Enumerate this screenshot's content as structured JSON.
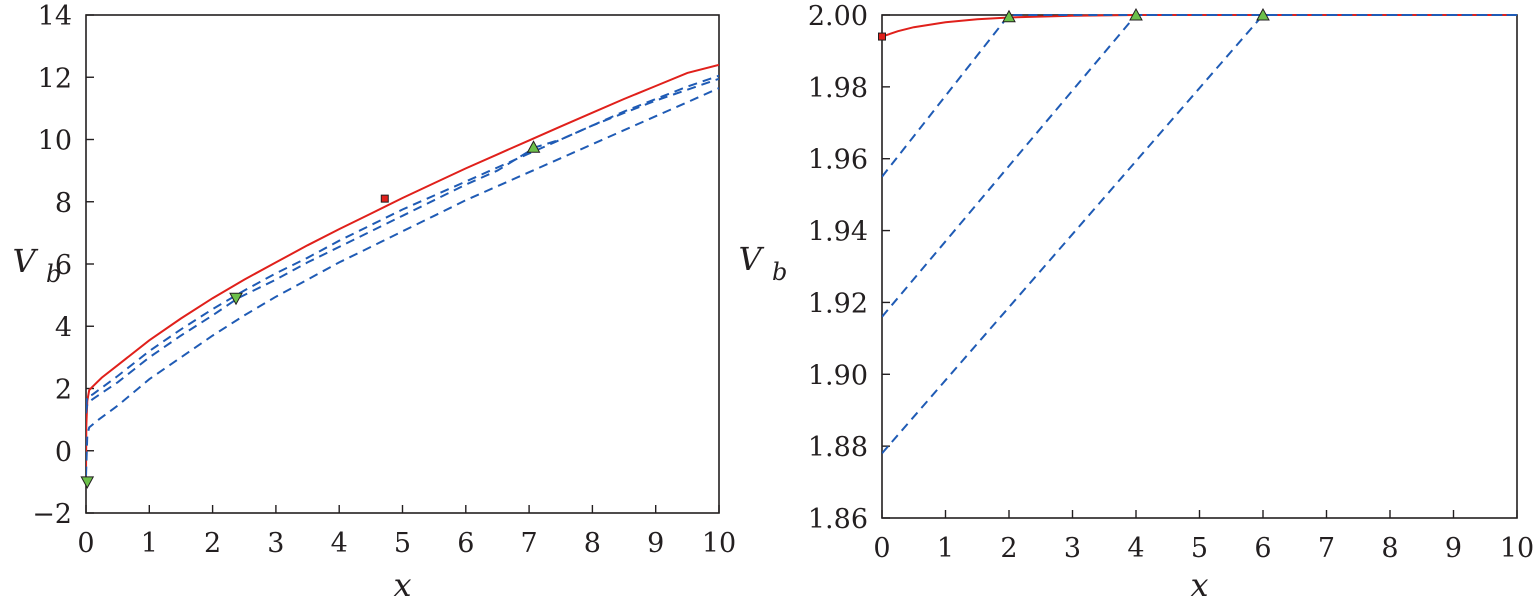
{
  "chart_data": [
    {
      "type": "line",
      "title": "",
      "xlabel": "x",
      "ylabel": "V",
      "ylabel_subscript": "b",
      "xlim": [
        0,
        10
      ],
      "ylim": [
        -2,
        14
      ],
      "xticks": [
        "0",
        "1",
        "2",
        "3",
        "4",
        "5",
        "6",
        "7",
        "8",
        "9",
        "10"
      ],
      "yticks": [
        "−2",
        "0",
        "2",
        "4",
        "6",
        "8",
        "10",
        "12",
        "14"
      ],
      "grid": false,
      "colors": {
        "solid": "#e0201b",
        "dashed": "#1f5bb5",
        "triangle_fill": "#6cc04a",
        "square_fill": "#e0201b",
        "axis": "#231f20"
      },
      "series": [
        {
          "style": "solid",
          "color": "#e0201b",
          "x": [
            0,
            0.005,
            0.02,
            0.05,
            0.1,
            0.25,
            0.5,
            1,
            1.5,
            2,
            2.5,
            3,
            3.5,
            4,
            4.5,
            5,
            5.5,
            6,
            6.5,
            7,
            7.5,
            8,
            8.5,
            9,
            9.5,
            10
          ],
          "y": [
            -0.8,
            0.8,
            1.6,
            1.95,
            2.05,
            2.35,
            2.75,
            3.55,
            4.25,
            4.9,
            5.5,
            6.05,
            6.6,
            7.12,
            7.62,
            8.12,
            8.6,
            9.07,
            9.52,
            9.97,
            10.42,
            10.86,
            11.3,
            11.72,
            12.14,
            12.4
          ]
        },
        {
          "style": "dashed",
          "color": "#1f5bb5",
          "x": [
            0,
            0.02,
            0.1,
            0.5,
            1,
            1.5,
            2,
            2.5,
            3,
            3.5,
            4,
            4.5,
            5,
            5.5,
            6,
            6.5,
            7,
            7.5,
            8,
            8.5,
            9,
            9.5,
            10
          ],
          "y": [
            1.4,
            1.75,
            1.8,
            2.4,
            3.2,
            3.9,
            4.55,
            5.15,
            5.7,
            6.2,
            6.75,
            7.25,
            7.75,
            8.2,
            8.65,
            9.1,
            9.55,
            10.0,
            10.45,
            10.9,
            11.3,
            11.7,
            12.05
          ]
        },
        {
          "style": "dashed",
          "color": "#1f5bb5",
          "x": [
            0,
            0.02,
            0.1,
            0.5,
            1,
            1.5,
            2,
            2.4,
            3,
            3.5,
            4,
            4.5,
            5,
            5.5,
            6,
            6.5,
            7.1,
            7.5,
            8,
            8.5,
            9,
            9.5,
            10
          ],
          "y": [
            1.2,
            1.5,
            1.65,
            2.2,
            3.0,
            3.7,
            4.35,
            4.9,
            5.5,
            6.05,
            6.55,
            7.05,
            7.55,
            8.05,
            8.55,
            9.0,
            9.75,
            10.0,
            10.45,
            10.85,
            11.25,
            11.6,
            11.95
          ]
        },
        {
          "style": "dashed",
          "color": "#1f5bb5",
          "x": [
            0,
            0.02,
            0.05,
            0.2,
            0.5,
            1,
            1.5,
            2,
            2.5,
            3,
            3.5,
            4,
            4.5,
            5,
            5.5,
            6,
            6.5,
            7,
            7.5,
            8,
            8.5,
            9,
            9.5,
            10
          ],
          "y": [
            -0.8,
            0.5,
            0.75,
            1.0,
            1.45,
            2.3,
            3.0,
            3.7,
            4.35,
            4.95,
            5.5,
            6.05,
            6.55,
            7.05,
            7.55,
            8.05,
            8.5,
            8.95,
            9.4,
            9.85,
            10.3,
            10.75,
            11.2,
            11.65
          ]
        }
      ],
      "markers": [
        {
          "shape": "square",
          "x": 4.72,
          "y": 8.1
        },
        {
          "shape": "triangle-down",
          "x": 0.02,
          "y": -1.0
        },
        {
          "shape": "triangle-down",
          "x": 2.37,
          "y": 4.9
        },
        {
          "shape": "triangle-up",
          "x": 7.07,
          "y": 9.75
        }
      ]
    },
    {
      "type": "line",
      "title": "",
      "xlabel": "x",
      "ylabel": "V",
      "ylabel_subscript": "b",
      "xlim": [
        0,
        10
      ],
      "ylim": [
        1.86,
        2.0
      ],
      "xticks": [
        "0",
        "1",
        "2",
        "3",
        "4",
        "5",
        "6",
        "7",
        "8",
        "9",
        "10"
      ],
      "yticks": [
        "1.86",
        "1.88",
        "1.90",
        "1.92",
        "1.94",
        "1.96",
        "1.98",
        "2.00"
      ],
      "grid": false,
      "colors": {
        "solid": "#e0201b",
        "dashed": "#1f5bb5",
        "triangle_fill": "#6cc04a",
        "square_fill": "#e0201b",
        "axis": "#231f20"
      },
      "series": [
        {
          "style": "solid",
          "color": "#e0201b",
          "x": [
            0,
            0.25,
            0.5,
            1,
            1.5,
            2,
            3,
            4,
            6,
            8,
            10
          ],
          "y": [
            1.994,
            1.9955,
            1.9966,
            1.998,
            1.9988,
            1.9993,
            1.9998,
            2.0,
            2.0,
            2.0,
            2.0
          ]
        },
        {
          "style": "dashed",
          "color": "#1f5bb5",
          "x": [
            0,
            2,
            10
          ],
          "y": [
            1.955,
            2.0,
            2.0
          ]
        },
        {
          "style": "dashed",
          "color": "#1f5bb5",
          "x": [
            0,
            4,
            10
          ],
          "y": [
            1.916,
            2.0,
            2.0
          ]
        },
        {
          "style": "dashed",
          "color": "#1f5bb5",
          "x": [
            0,
            6,
            10
          ],
          "y": [
            1.878,
            2.0,
            2.0
          ]
        }
      ],
      "markers": [
        {
          "shape": "square",
          "x": 0,
          "y": 1.994
        },
        {
          "shape": "triangle-up",
          "x": 2,
          "y": 1.9995
        },
        {
          "shape": "triangle-up",
          "x": 4,
          "y": 2.0
        },
        {
          "shape": "triangle-up",
          "x": 6,
          "y": 2.0
        }
      ]
    }
  ]
}
